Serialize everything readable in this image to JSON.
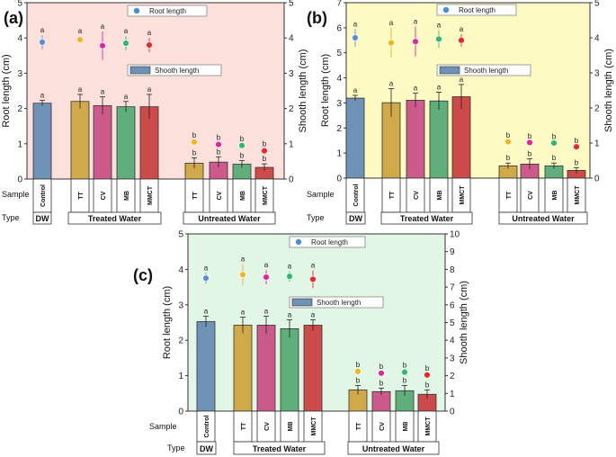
{
  "chart_data": [
    {
      "id": "a",
      "panel_label": "(a)",
      "type": "bar",
      "background": "#fce0dc",
      "ylabel_left": "Root length (cm)",
      "ylabel_right": "Shooth length (cm)",
      "y_left_range": [
        0,
        5
      ],
      "y_right_range": [
        0,
        5
      ],
      "y_left_ticks": [
        "0",
        "1",
        "2",
        "3",
        "4",
        "5"
      ],
      "y_right_ticks": [
        "0",
        "1",
        "2",
        "3",
        "4",
        "5"
      ],
      "categories": [
        "Control",
        "TT",
        "CV",
        "MB",
        "MMCT",
        "TT",
        "CV",
        "MB",
        "MMCT"
      ],
      "legend_root": "Root length",
      "legend_shoot": "Shooth length",
      "root_series": {
        "name": "Root length",
        "values": [
          3.88,
          3.95,
          3.78,
          3.85,
          3.8,
          1.05,
          0.98,
          0.95,
          0.8
        ],
        "errors": [
          0.2,
          0.1,
          0.4,
          0.2,
          0.2,
          0.05,
          0.05,
          0.05,
          0.05
        ],
        "letters": [
          "a",
          "a",
          "a",
          "a",
          "a",
          "b",
          "b",
          "b",
          "b"
        ]
      },
      "shoot_series": {
        "name": "Shooth length",
        "values": [
          2.15,
          2.2,
          2.08,
          2.05,
          2.05,
          0.45,
          0.48,
          0.42,
          0.33
        ],
        "errors": [
          0.08,
          0.2,
          0.25,
          0.15,
          0.35,
          0.15,
          0.15,
          0.1,
          0.1
        ],
        "letters": [
          "a",
          "a",
          "a",
          "a",
          "a",
          "b",
          "b",
          "b",
          "b"
        ]
      },
      "sample_label": "Sample",
      "type_label": "Type",
      "groups": [
        "DW",
        "Treated Water",
        "Untreated Water"
      ]
    },
    {
      "id": "b",
      "panel_label": "(b)",
      "type": "bar",
      "background": "#fdfbc3",
      "ylabel_left": "Root length (cm)",
      "ylabel_right": "Shooth length (cm)",
      "y_left_range": [
        0,
        7
      ],
      "y_right_range": [
        0,
        5
      ],
      "y_left_ticks": [
        "0",
        "1",
        "2",
        "3",
        "4",
        "5",
        "6",
        "7"
      ],
      "y_right_ticks": [
        "0",
        "1",
        "2",
        "3",
        "4",
        "5"
      ],
      "categories": [
        "Control",
        "TT",
        "CV",
        "MB",
        "MMCT",
        "TT",
        "CV",
        "MB",
        "MMCT"
      ],
      "legend_root": "Root length",
      "legend_shoot": "Shooth length",
      "root_series": {
        "name": "Root length",
        "values": [
          5.6,
          5.4,
          5.45,
          5.55,
          5.5,
          1.45,
          1.42,
          1.4,
          1.25
        ],
        "errors": [
          0.35,
          0.6,
          0.6,
          0.35,
          0.25,
          0.05,
          0.05,
          0.05,
          0.05
        ],
        "letters": [
          "a",
          "a",
          "a",
          "a",
          "a",
          "b",
          "b",
          "b",
          "b"
        ]
      },
      "shoot_series": {
        "name": "Shooth length",
        "values": [
          2.28,
          2.15,
          2.22,
          2.2,
          2.32,
          0.35,
          0.4,
          0.35,
          0.22
        ],
        "errors": [
          0.08,
          0.4,
          0.2,
          0.25,
          0.35,
          0.08,
          0.15,
          0.08,
          0.08
        ],
        "letters": [
          "a",
          "a",
          "a",
          "a",
          "a",
          "b",
          "b",
          "b",
          "b"
        ]
      },
      "sample_label": "Sample",
      "type_label": "Type",
      "groups": [
        "DW",
        "Treated Water",
        "Untreated Water"
      ]
    },
    {
      "id": "c",
      "panel_label": "(c)",
      "type": "bar",
      "background": "#e2f6e6",
      "ylabel_left": "Root length (cm)",
      "ylabel_right": "Shooth length (cm)",
      "y_left_range": [
        0,
        5
      ],
      "y_right_range": [
        0,
        10
      ],
      "y_left_ticks": [
        "0",
        "1",
        "2",
        "3",
        "4",
        "5"
      ],
      "y_right_ticks": [
        "0",
        "1",
        "2",
        "3",
        "4",
        "5",
        "6",
        "7",
        "8",
        "9",
        "10"
      ],
      "categories": [
        "Control",
        "TT",
        "CV",
        "MB",
        "MMCT",
        "TT",
        "CV",
        "MB",
        "MMCT"
      ],
      "legend_root": "Root length",
      "legend_shoot": "Shooth length",
      "root_series": {
        "name": "Root length",
        "values": [
          3.75,
          3.85,
          3.78,
          3.8,
          3.72,
          1.12,
          1.07,
          1.1,
          1.02
        ],
        "errors": [
          0.15,
          0.3,
          0.2,
          0.15,
          0.25,
          0.05,
          0.05,
          0.05,
          0.05
        ],
        "letters": [
          "a",
          "a",
          "a",
          "a",
          "a",
          "b",
          "b",
          "b",
          "b"
        ]
      },
      "shoot_series": {
        "name": "Shooth length",
        "values": [
          5.05,
          4.85,
          4.85,
          4.65,
          4.85,
          1.2,
          1.1,
          1.15,
          0.95
        ],
        "errors": [
          0.3,
          0.45,
          0.5,
          0.5,
          0.3,
          0.25,
          0.2,
          0.3,
          0.25
        ],
        "letters": [
          "a",
          "a",
          "a",
          "a",
          "a",
          "b",
          "b",
          "b",
          "b"
        ]
      },
      "sample_label": "Sample",
      "type_label": "Type",
      "groups": [
        "DW",
        "Treated Water",
        "Untreated Water"
      ]
    }
  ],
  "colors": {
    "bars": [
      "#6f93b6",
      "#cfa94a",
      "#cc5b8b",
      "#5fae7c",
      "#cc4a4a",
      "#cfa94a",
      "#cc5b8b",
      "#5fae7c",
      "#cc4a4a"
    ],
    "dots": [
      "#5b8fd0",
      "#f2b320",
      "#e0259e",
      "#2fb870",
      "#e62828",
      "#f2b320",
      "#e0259e",
      "#2fb870",
      "#e62828"
    ],
    "legend_dot": "#4a8fd6",
    "legend_bar": "#6f93b6"
  }
}
